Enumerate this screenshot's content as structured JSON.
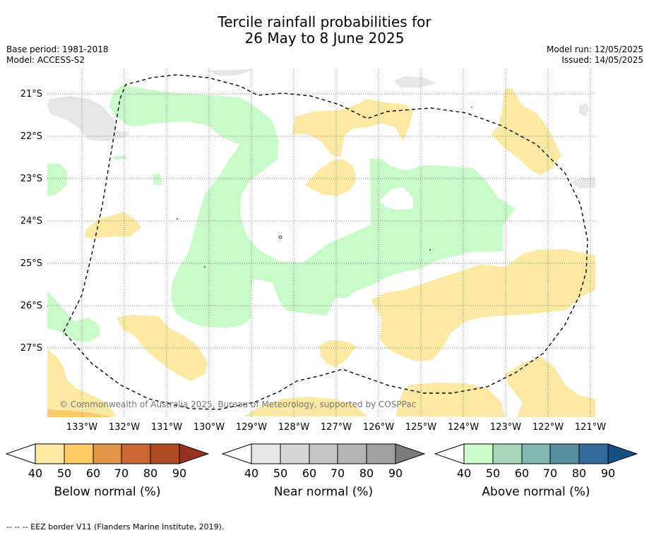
{
  "title": {
    "line1": "Tercile rainfall probabilities for",
    "line2": "26 May to 8 June 2025"
  },
  "meta": {
    "base_period": "Base period: 1981-2018",
    "model": "Model: ACCESS-S2",
    "model_run": "Model run: 12/05/2025",
    "issued": "Issued: 14/05/2025"
  },
  "map": {
    "latitude_labels": [
      "21°S",
      "22°S",
      "23°S",
      "24°S",
      "25°S",
      "26°S",
      "27°S"
    ],
    "longitude_labels": [
      "133°W",
      "132°W",
      "131°W",
      "130°W",
      "129°W",
      "128°W",
      "127°W",
      "126°W",
      "125°W",
      "124°W",
      "123°W",
      "122°W",
      "121°W"
    ],
    "copyright": "© Commonwealth of Australia 2025, Bureau of Meteorology, supported by COSPPac",
    "colors": {
      "below_normal_50": "#fde9a3",
      "near_normal_40": "#e6e6e6",
      "above_normal_40": "#c8fbc8",
      "eez_line": "#000000"
    }
  },
  "colorbars": [
    {
      "caption": "Below normal (%)",
      "ticks": [
        "40",
        "50",
        "60",
        "70",
        "80",
        "90"
      ],
      "colors": [
        "#ffffff",
        "#fde9a3",
        "#fdcb66",
        "#e29547",
        "#ce6733",
        "#b04b26",
        "#973220"
      ]
    },
    {
      "caption": "Near normal (%)",
      "ticks": [
        "40",
        "50",
        "60",
        "70",
        "80",
        "90"
      ],
      "colors": [
        "#ffffff",
        "#e6e6e6",
        "#d6d6d6",
        "#c6c6c6",
        "#b4b4b4",
        "#a0a0a0",
        "#7c7c7c"
      ]
    },
    {
      "caption": "Above normal (%)",
      "ticks": [
        "40",
        "50",
        "60",
        "70",
        "80",
        "90"
      ],
      "colors": [
        "#ffffff",
        "#c8fbc8",
        "#a6d7b8",
        "#82b8b2",
        "#5690a0",
        "#336a9c",
        "#174f84"
      ]
    }
  ],
  "footer": "--  --  -- EEZ border V11 (Flanders Marine Institute, 2019)."
}
